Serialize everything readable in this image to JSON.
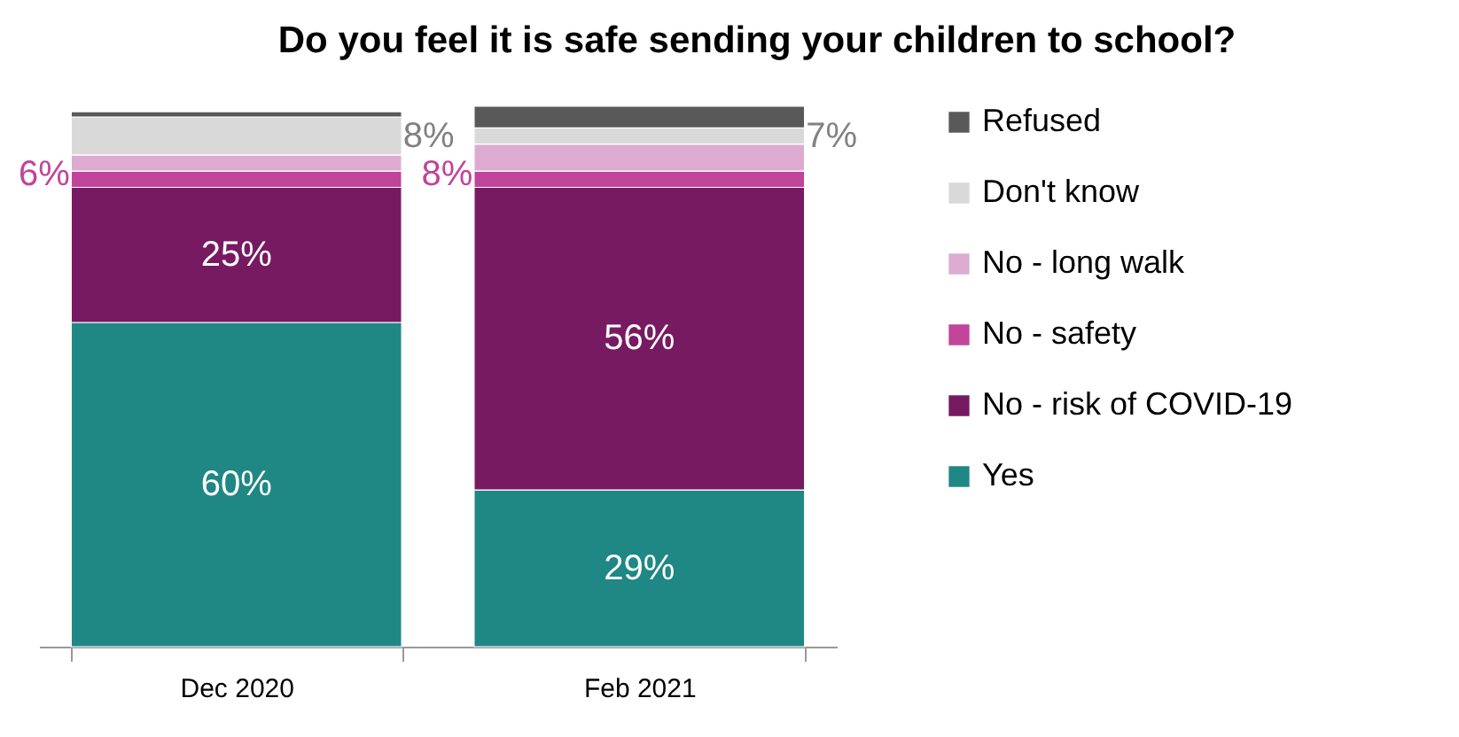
{
  "chart_data": {
    "type": "bar",
    "title": "Do you feel it is safe sending your children to school?",
    "categories": [
      "Dec 2020",
      "Feb 2021"
    ],
    "stacked": true,
    "legend": "right",
    "series": [
      {
        "name": "Yes",
        "color": "#1f8784",
        "values": [
          60,
          29
        ],
        "value_labels": [
          "60%",
          "29%"
        ]
      },
      {
        "name": "No - risk of COVID-19",
        "color": "#771a62",
        "values": [
          25,
          56
        ],
        "value_labels": [
          "25%",
          "56%"
        ]
      },
      {
        "name": "No - safety",
        "color": "#c1449b",
        "values": [
          3,
          3
        ]
      },
      {
        "name": "No - long walk",
        "color": "#ddabd1",
        "values": [
          3,
          5
        ]
      },
      {
        "name": "Don't know",
        "color": "#d9d9d9",
        "values": [
          7,
          3
        ]
      },
      {
        "name": "Refused",
        "color": "#595959",
        "values": [
          1,
          4
        ]
      }
    ],
    "annotations": [
      "6%",
      "8%",
      "8%",
      "7%"
    ]
  }
}
